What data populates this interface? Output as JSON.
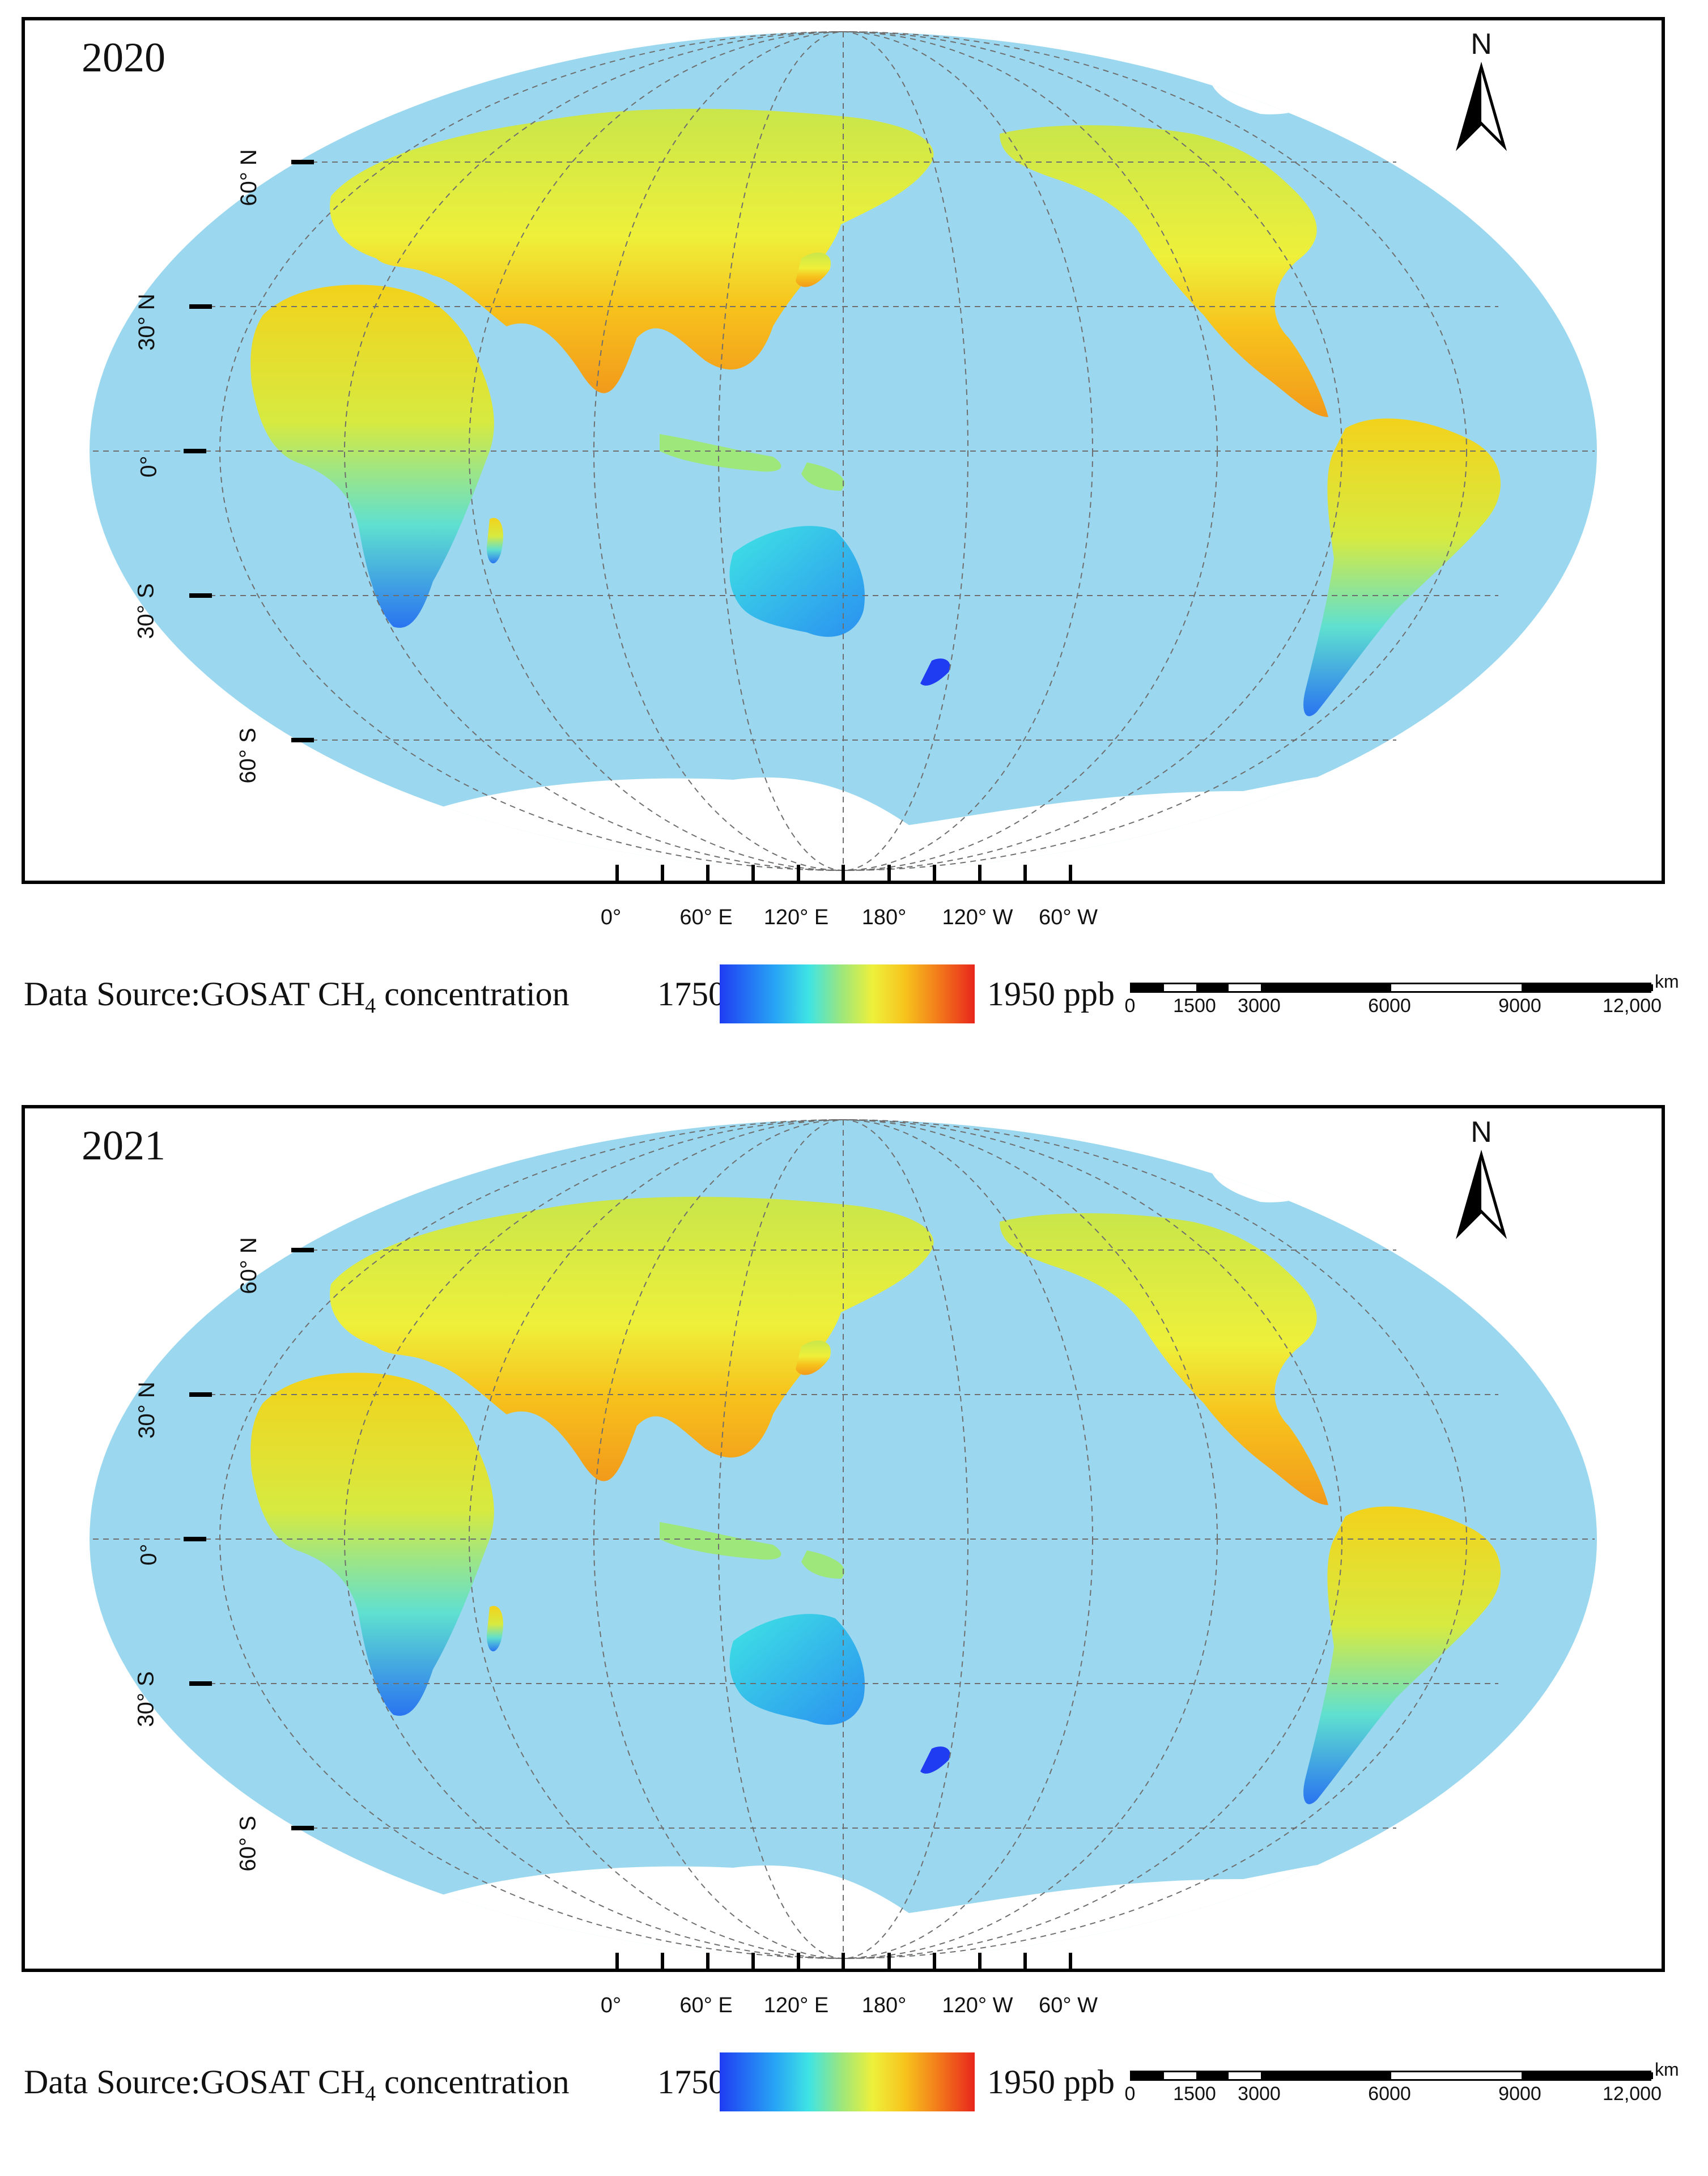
{
  "panels": [
    {
      "year": "2020",
      "north_label": "N",
      "lat_labels": [
        "60° N",
        "30° N",
        "0°",
        "30° S",
        "60° S"
      ],
      "lon_labels": [
        "0°",
        "60° E",
        "120° E",
        "180°",
        "120° W",
        "60° W"
      ],
      "legend": {
        "source": "Data Source:GOSAT  CH",
        "source_sub": "4",
        "source_suffix": " concentration",
        "min": "1750",
        "max": "1950 ppb"
      },
      "scale": {
        "ticks": [
          "0",
          "1500",
          "3000",
          "6000",
          "9000",
          "12,000"
        ],
        "unit": "km"
      },
      "colors": {
        "ocean": "#9bd8ef",
        "land_low": "#1f3cf2",
        "land_high": "#e8261c",
        "ice": "#ffffff"
      }
    },
    {
      "year": "2021",
      "north_label": "N",
      "lat_labels": [
        "60° N",
        "30° N",
        "0°",
        "30° S",
        "60° S"
      ],
      "lon_labels": [
        "0°",
        "60° E",
        "120° E",
        "180°",
        "120° W",
        "60° W"
      ],
      "legend": {
        "source": "Data Source:GOSAT  CH",
        "source_sub": "4",
        "source_suffix": " concentration",
        "min": "1750",
        "max": "1950 ppb"
      },
      "scale": {
        "ticks": [
          "0",
          "1500",
          "3000",
          "6000",
          "9000",
          "12,000"
        ],
        "unit": "km"
      },
      "colors": {
        "ocean": "#9bd8ef",
        "land_low": "#1f3cf2",
        "land_high": "#e8261c",
        "ice": "#ffffff"
      }
    }
  ]
}
